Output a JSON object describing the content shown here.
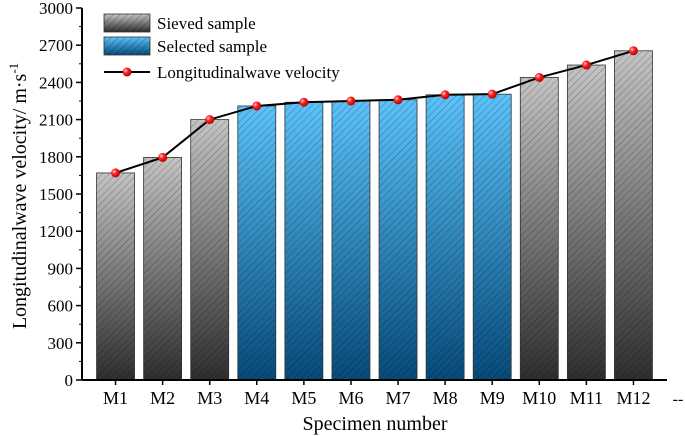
{
  "chart_data": {
    "type": "bar",
    "xlabel": "Specimen number",
    "ylabel": "Longitudinalwave velocity/ m·s",
    "ylabel_sup": "-1",
    "ylim": [
      0,
      3000
    ],
    "yticks": [
      0,
      300,
      600,
      900,
      1200,
      1500,
      1800,
      2100,
      2400,
      2700,
      3000
    ],
    "categories": [
      "M1",
      "M2",
      "M3",
      "M4",
      "M5",
      "M6",
      "M7",
      "M8",
      "M9",
      "M10",
      "M11",
      "M12"
    ],
    "values": [
      1670,
      1795,
      2100,
      2210,
      2240,
      2250,
      2260,
      2300,
      2305,
      2440,
      2540,
      2655
    ],
    "groups": [
      "sieved",
      "sieved",
      "sieved",
      "selected",
      "selected",
      "selected",
      "selected",
      "selected",
      "selected",
      "sieved",
      "sieved",
      "sieved"
    ],
    "series": [
      {
        "name": "Sieved sample",
        "type": "bar",
        "color": "#8a8a8a"
      },
      {
        "name": "Selected sample",
        "type": "bar",
        "color": "#2a90d0"
      },
      {
        "name": "Longitudinalwave velocity",
        "type": "line",
        "color": "#000000",
        "marker_color": "#ff0000"
      }
    ],
    "legend_position": "top-left",
    "grid": false,
    "extra_label": "--"
  }
}
